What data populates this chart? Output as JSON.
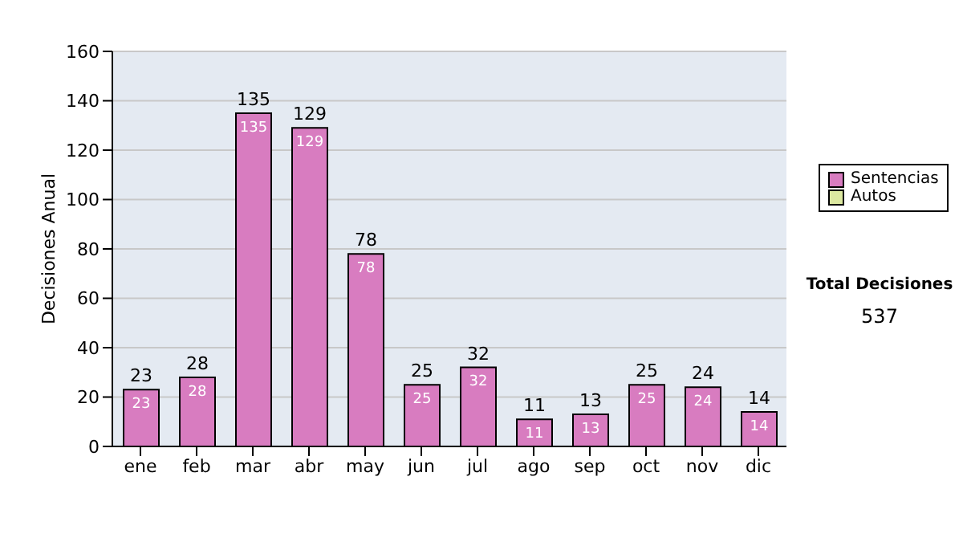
{
  "chart_data": {
    "type": "bar",
    "ylabel": "Decisiones Anual",
    "categories": [
      "ene",
      "feb",
      "mar",
      "abr",
      "may",
      "jun",
      "jul",
      "ago",
      "sep",
      "oct",
      "nov",
      "dic"
    ],
    "series": [
      {
        "name": "Sentencias",
        "color": "#d87cc0",
        "values": [
          23,
          28,
          135,
          129,
          78,
          25,
          32,
          11,
          13,
          25,
          24,
          14
        ]
      },
      {
        "name": "Autos",
        "color": "#dce8a0",
        "values": [
          null,
          null,
          null,
          null,
          null,
          null,
          null,
          null,
          null,
          null,
          null,
          null
        ]
      }
    ],
    "stacked": true,
    "totals": [
      "23",
      "28",
      "135",
      "129",
      "78",
      "25",
      "32",
      "11",
      "13",
      "25",
      "24",
      "14"
    ],
    "ylim": [
      0,
      160
    ],
    "yticks": [
      0,
      20,
      40,
      60,
      80,
      100,
      120,
      140,
      160
    ],
    "grid": "y",
    "legend": "right",
    "data_labels": true,
    "annotations": [
      "Total Decisiones",
      "537"
    ]
  }
}
